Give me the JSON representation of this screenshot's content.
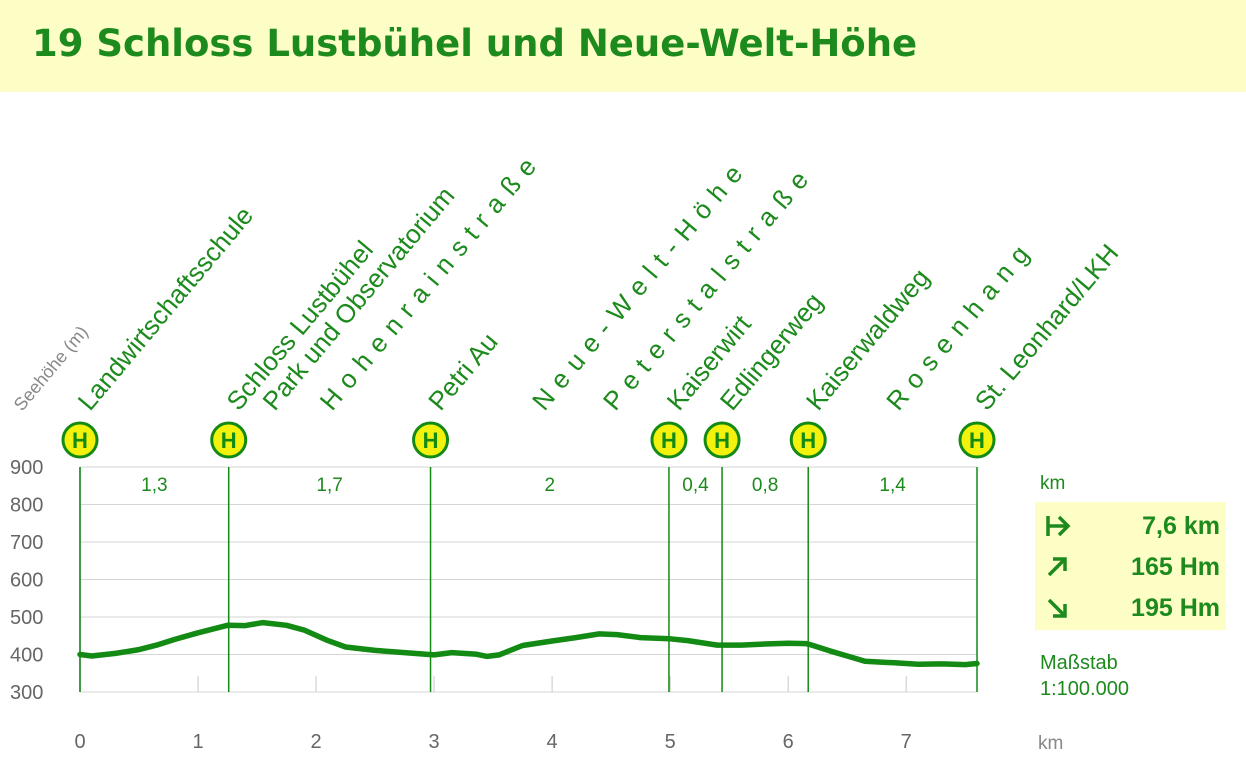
{
  "header": {
    "title": "19  Schloss Lustbühel und Neue-Welt-Höhe"
  },
  "colors": {
    "banner": "#fdfdc6",
    "green": "#1c8a1c",
    "profile": "#138a13",
    "bus_fill": "#f2f20d",
    "axis_text": "#666666"
  },
  "icons": {
    "bus_stop": "bus-stop-icon",
    "distance": "arrow-right-icon",
    "ascent": "arrow-up-right-icon",
    "descent": "arrow-down-right-icon"
  },
  "chart_data": {
    "type": "line",
    "ylabel": "Seehöhe (m)",
    "xlabel": "km",
    "xlim": [
      0,
      7.6
    ],
    "ylim": [
      300,
      900
    ],
    "x_ticks": [
      0,
      1,
      2,
      3,
      4,
      5,
      6,
      7
    ],
    "y_ticks": [
      300,
      400,
      500,
      600,
      700,
      800,
      900
    ],
    "grid": "horizontal",
    "series": [
      {
        "x": [
          0,
          0.1,
          0.3,
          0.5,
          0.65,
          0.8,
          1.0,
          1.1,
          1.25,
          1.4,
          1.55,
          1.75,
          1.9,
          2.1,
          2.25,
          2.5,
          2.75,
          3.0,
          3.15,
          3.35,
          3.45,
          3.55,
          3.75,
          4.0,
          4.2,
          4.4,
          4.55,
          4.75,
          5.0,
          5.15,
          5.4,
          5.6,
          5.8,
          6.0,
          6.15,
          6.2,
          6.35,
          6.5,
          6.65,
          6.9,
          7.1,
          7.3,
          7.5,
          7.6
        ],
        "y": [
          400,
          396,
          403,
          413,
          425,
          440,
          458,
          466,
          478,
          477,
          485,
          478,
          465,
          437,
          420,
          411,
          405,
          399,
          405,
          401,
          395,
          399,
          424,
          436,
          445,
          455,
          453,
          445,
          442,
          437,
          425,
          425,
          428,
          430,
          429,
          425,
          410,
          396,
          382,
          378,
          374,
          375,
          373,
          376
        ]
      }
    ],
    "segments": [
      {
        "label": "1,3",
        "from": 0,
        "to": 1.26
      },
      {
        "label": "1,7",
        "from": 1.26,
        "to": 2.97
      },
      {
        "label": "2",
        "from": 2.97,
        "to": 4.99
      },
      {
        "label": "0,4",
        "from": 4.99,
        "to": 5.44
      },
      {
        "label": "0,8",
        "from": 5.44,
        "to": 6.17
      },
      {
        "label": "1,4",
        "from": 6.17,
        "to": 7.6
      }
    ],
    "stops": [
      {
        "name": "Landwirtschaftsschule",
        "km": 0,
        "bus": true,
        "spaced": false
      },
      {
        "name": "Schloss Lustbühel",
        "km": 1.26,
        "bus": true,
        "spaced": false
      },
      {
        "name": "Park und Observatorium",
        "km": 1.26,
        "bus": false,
        "spaced": false
      },
      {
        "name": "Hohenrainstraße",
        "km": 2.05,
        "bus": false,
        "spaced": true
      },
      {
        "name": "Petri Au",
        "km": 2.97,
        "bus": true,
        "spaced": false
      },
      {
        "name": "Neue-Welt-Höhe",
        "km": 3.85,
        "bus": false,
        "spaced": true
      },
      {
        "name": "Peterstalstraße",
        "km": 4.45,
        "bus": false,
        "spaced": true
      },
      {
        "name": "Kaiserwirt",
        "km": 4.99,
        "bus": true,
        "spaced": false
      },
      {
        "name": "Edlingerweg",
        "km": 5.44,
        "bus": true,
        "spaced": false
      },
      {
        "name": "Kaiserwaldweg",
        "km": 6.17,
        "bus": true,
        "spaced": false
      },
      {
        "name": "Rosenhang",
        "km": 6.85,
        "bus": false,
        "spaced": true
      },
      {
        "name": "St. Leonhard/LKH",
        "km": 7.6,
        "bus": true,
        "spaced": false
      }
    ]
  },
  "summary": {
    "distance": "7,6 km",
    "ascent": "165 Hm",
    "descent": "195 Hm",
    "distance_unit_label": "km",
    "scale_label": "Maßstab",
    "scale_value": "1:100.000",
    "x_unit": "km"
  }
}
